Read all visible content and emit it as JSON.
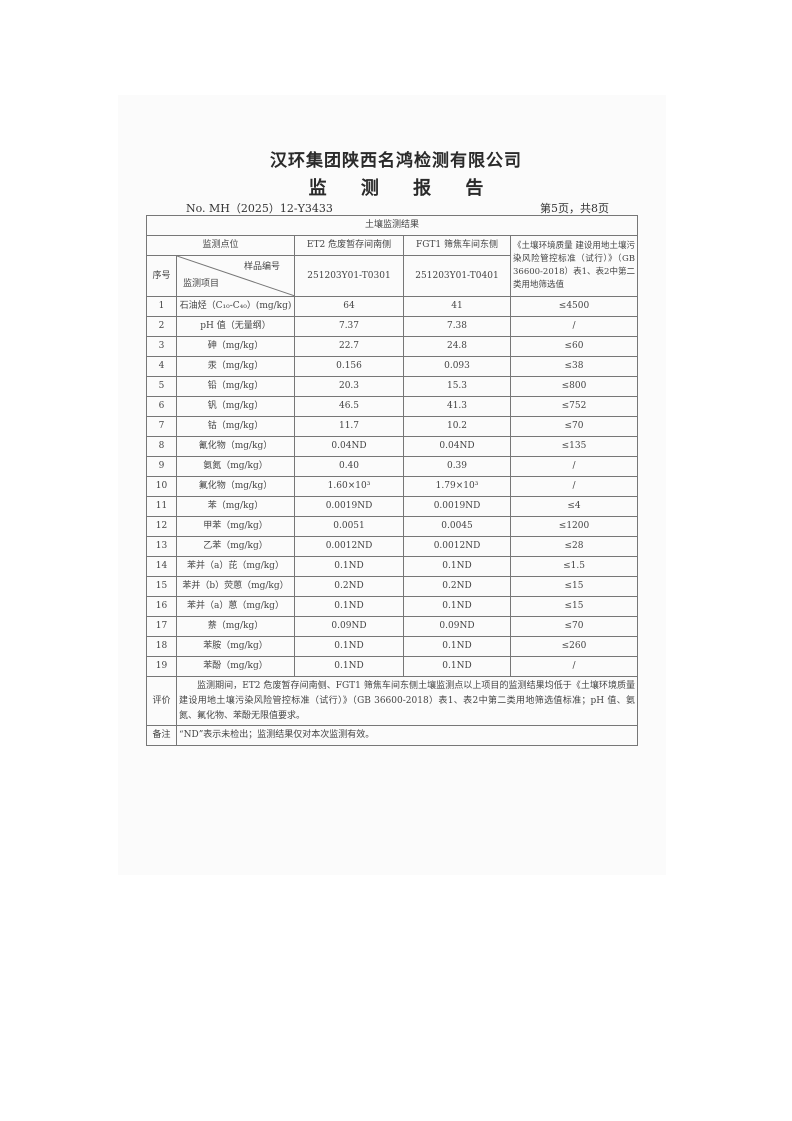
{
  "company": "汉环集团陕西名鸿检测有限公司",
  "report_title": "监 测 报 告",
  "report_no": "No. MH（2025）12-Y3433",
  "page_info": "第5页，共8页",
  "table": {
    "title": "土壤监测结果",
    "point_label": "监测点位",
    "points": [
      "ET2 危废暂存间南侧",
      "FGT1 筛焦车间东侧"
    ],
    "standard_header": "《土壤环境质量 建设用地土壤污染风险管控标准（试行）》（GB 36600-2018）表1、表2中第二类用地筛选值",
    "seq_label": "序号",
    "sample_no_label": "样品编号",
    "item_label": "监测项目",
    "sample_nos": [
      "251203Y01-T0301",
      "251203Y01-T0401"
    ],
    "rows": [
      {
        "no": "1",
        "item": "石油烃（C₁₀-C₄₀）(mg/kg)",
        "v1": "64",
        "v2": "41",
        "std": "≤4500"
      },
      {
        "no": "2",
        "item": "pH 值（无量纲）",
        "v1": "7.37",
        "v2": "7.38",
        "std": "/"
      },
      {
        "no": "3",
        "item": "砷（mg/kg）",
        "v1": "22.7",
        "v2": "24.8",
        "std": "≤60"
      },
      {
        "no": "4",
        "item": "汞（mg/kg）",
        "v1": "0.156",
        "v2": "0.093",
        "std": "≤38"
      },
      {
        "no": "5",
        "item": "铅（mg/kg）",
        "v1": "20.3",
        "v2": "15.3",
        "std": "≤800"
      },
      {
        "no": "6",
        "item": "钒（mg/kg）",
        "v1": "46.5",
        "v2": "41.3",
        "std": "≤752"
      },
      {
        "no": "7",
        "item": "钴（mg/kg）",
        "v1": "11.7",
        "v2": "10.2",
        "std": "≤70"
      },
      {
        "no": "8",
        "item": "氰化物（mg/kg）",
        "v1": "0.04ND",
        "v2": "0.04ND",
        "std": "≤135"
      },
      {
        "no": "9",
        "item": "氨氮（mg/kg）",
        "v1": "0.40",
        "v2": "0.39",
        "std": "/"
      },
      {
        "no": "10",
        "item": "氟化物（mg/kg）",
        "v1": "1.60×10³",
        "v2": "1.79×10³",
        "std": "/"
      },
      {
        "no": "11",
        "item": "苯（mg/kg）",
        "v1": "0.0019ND",
        "v2": "0.0019ND",
        "std": "≤4"
      },
      {
        "no": "12",
        "item": "甲苯（mg/kg）",
        "v1": "0.0051",
        "v2": "0.0045",
        "std": "≤1200"
      },
      {
        "no": "13",
        "item": "乙苯（mg/kg）",
        "v1": "0.0012ND",
        "v2": "0.0012ND",
        "std": "≤28"
      },
      {
        "no": "14",
        "item": "苯并（a）芘（mg/kg）",
        "v1": "0.1ND",
        "v2": "0.1ND",
        "std": "≤1.5"
      },
      {
        "no": "15",
        "item": "苯并（b）荧蒽（mg/kg）",
        "v1": "0.2ND",
        "v2": "0.2ND",
        "std": "≤15"
      },
      {
        "no": "16",
        "item": "苯并（a）蒽（mg/kg）",
        "v1": "0.1ND",
        "v2": "0.1ND",
        "std": "≤15"
      },
      {
        "no": "17",
        "item": "萘（mg/kg）",
        "v1": "0.09ND",
        "v2": "0.09ND",
        "std": "≤70"
      },
      {
        "no": "18",
        "item": "苯胺（mg/kg）",
        "v1": "0.1ND",
        "v2": "0.1ND",
        "std": "≤260"
      },
      {
        "no": "19",
        "item": "苯酚（mg/kg）",
        "v1": "0.1ND",
        "v2": "0.1ND",
        "std": "/"
      }
    ],
    "eval_label": "评价",
    "eval_text": "监测期间，ET2 危废暂存间南侧、FGT1 筛焦车间东侧土壤监测点以上项目的监测结果均低于《土壤环境质量 建设用地土壤污染风险管控标准（试行）》（GB 36600-2018）表1、表2中第二类用地筛选值标准；pH 值、氨氮、氟化物、苯酚无限值要求。",
    "note_label": "备注",
    "note_text": "“ND”表示未检出；监测结果仅对本次监测有效。"
  }
}
